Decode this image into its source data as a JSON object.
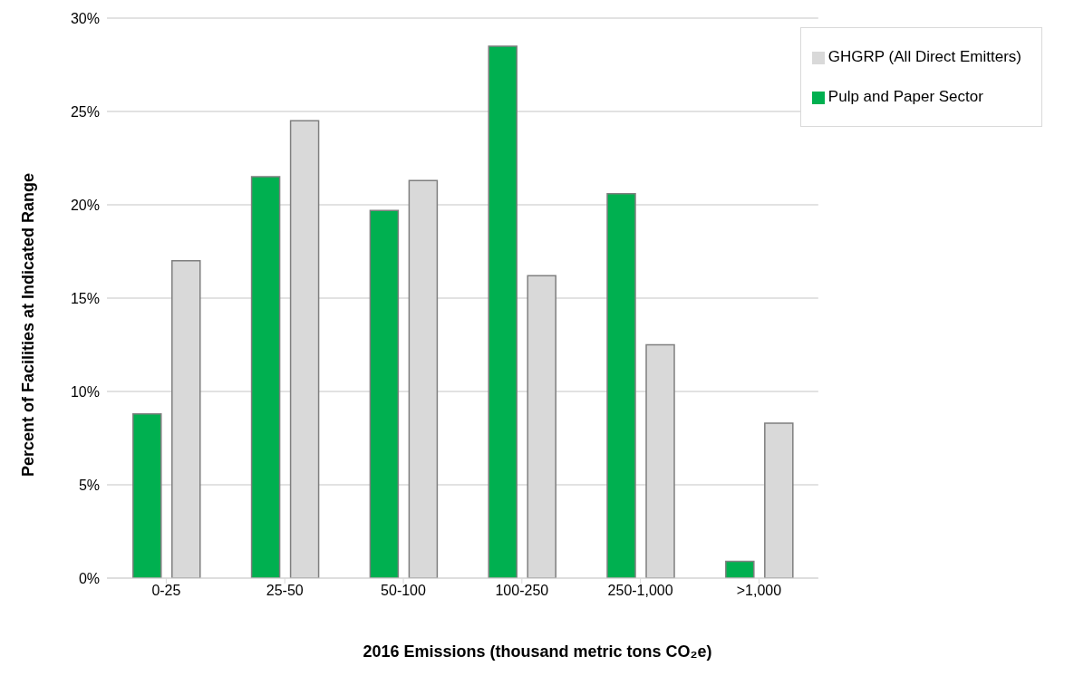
{
  "chart_data": {
    "type": "bar",
    "xlabel": "2016 Emissions (thousand metric tons CO₂e)",
    "ylabel": "Percent of Facilities at Indicated Range",
    "categories": [
      "0-25",
      "25-50",
      "50-100",
      "100-250",
      "250-1,000",
      ">1,000"
    ],
    "series": [
      {
        "name": "Pulp and Paper Sector",
        "color": "#00b050",
        "values": [
          8.8,
          21.5,
          19.7,
          28.5,
          20.6,
          0.9
        ]
      },
      {
        "name": "GHGRP (All Direct Emitters)",
        "color": "#d9d9d9",
        "values": [
          17.0,
          24.5,
          21.3,
          16.2,
          12.5,
          8.3
        ]
      }
    ],
    "ylim": [
      0,
      30
    ],
    "yticks": [
      {
        "value": 0,
        "label": "0%"
      },
      {
        "value": 5,
        "label": "5%"
      },
      {
        "value": 10,
        "label": "10%"
      },
      {
        "value": 15,
        "label": "15%"
      },
      {
        "value": 20,
        "label": "20%"
      },
      {
        "value": 25,
        "label": "25%"
      },
      {
        "value": 30,
        "label": "30%"
      }
    ],
    "grid": "y",
    "legend": "top right"
  }
}
